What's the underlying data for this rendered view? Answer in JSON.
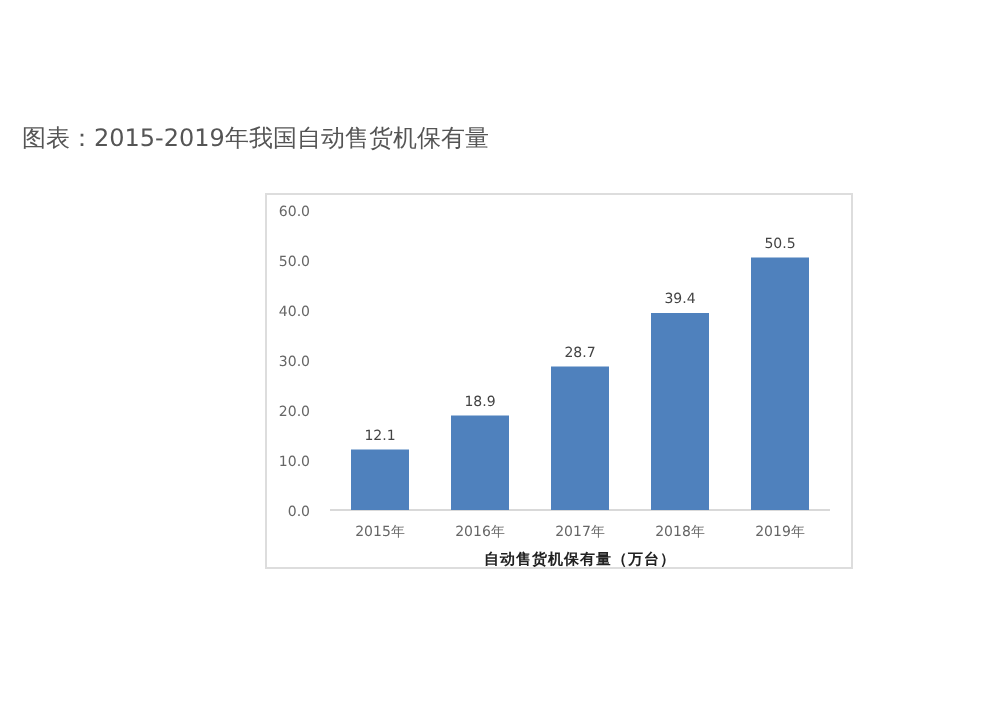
{
  "chart_data": {
    "type": "bar",
    "title": "图表：2015-2019年我国自动售货机保有量",
    "xlabel": "自动售货机保有量（万台）",
    "categories": [
      "2015年",
      "2016年",
      "2017年",
      "2018年",
      "2019年"
    ],
    "values": [
      12.1,
      18.9,
      28.7,
      39.4,
      50.5
    ],
    "color": "#4f81bd",
    "ylim": [
      0,
      60
    ],
    "yticks": [
      {
        "value": 0,
        "label": "0.0"
      },
      {
        "value": 10,
        "label": "10.0"
      },
      {
        "value": 20,
        "label": "20.0"
      },
      {
        "value": 30,
        "label": "30.0"
      },
      {
        "value": 40,
        "label": "40.0"
      },
      {
        "value": 50,
        "label": "50.0"
      },
      {
        "value": 60,
        "label": "60.0"
      }
    ],
    "data_labels": true
  }
}
